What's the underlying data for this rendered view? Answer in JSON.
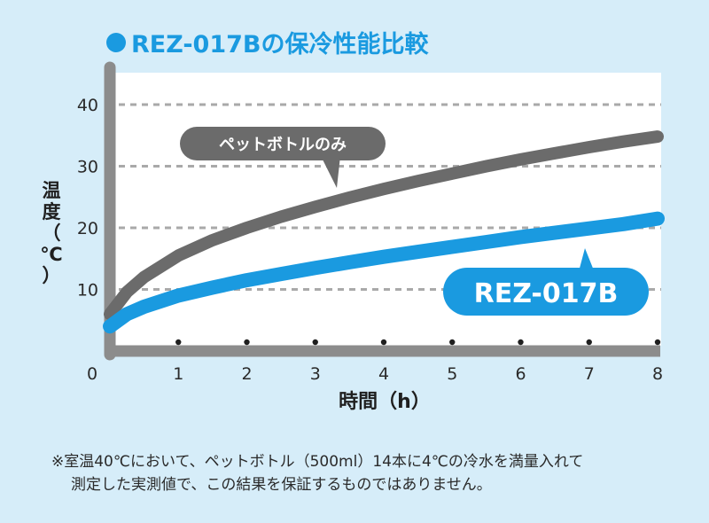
{
  "title": "REZ-017Bの保冷性能比較",
  "colors": {
    "accent": "#1a9ae0",
    "gray_series": "#6b6b6b",
    "background": "#d6edf9",
    "plot_bg": "#ffffff",
    "axis": "#8c8c8c"
  },
  "chart_data": {
    "type": "line",
    "xlabel": "時間（h）",
    "ylabel": "温度（℃）",
    "xlim": [
      0,
      8
    ],
    "ylim": [
      0,
      45
    ],
    "x_ticks": [
      "0",
      "1",
      "2",
      "3",
      "4",
      "5",
      "6",
      "7",
      "8"
    ],
    "y_ticks": [
      "10",
      "20",
      "30",
      "40"
    ],
    "grid": "horizontal dashed",
    "series": [
      {
        "name": "ペットボトルのみ",
        "color": "#6b6b6b",
        "x": [
          0,
          0.25,
          0.5,
          1,
          1.5,
          2,
          2.5,
          3,
          3.5,
          4,
          4.5,
          5,
          5.5,
          6,
          6.5,
          7,
          7.5,
          8
        ],
        "y": [
          6,
          9.6,
          12,
          15.5,
          18,
          20,
          21.8,
          23.4,
          24.9,
          26.3,
          27.6,
          28.8,
          30,
          31.1,
          32.1,
          33.1,
          34,
          34.8
        ]
      },
      {
        "name": "REZ-017B",
        "color": "#1a9ae0",
        "x": [
          0,
          0.25,
          0.5,
          1,
          1.5,
          2,
          2.5,
          3,
          3.5,
          4,
          4.5,
          5,
          5.5,
          6,
          6.5,
          7,
          7.5,
          8
        ],
        "y": [
          4,
          6,
          7.2,
          9,
          10.3,
          11.5,
          12.5,
          13.5,
          14.4,
          15.3,
          16.1,
          16.9,
          17.7,
          18.5,
          19.2,
          19.9,
          20.6,
          21.5
        ]
      }
    ]
  },
  "note": {
    "line1": "※室温40℃において、ペットボトル（500ml）14本に4℃の冷水を満量入れて",
    "line2": "測定した実測値で、この結果を保証するものではありません。"
  }
}
